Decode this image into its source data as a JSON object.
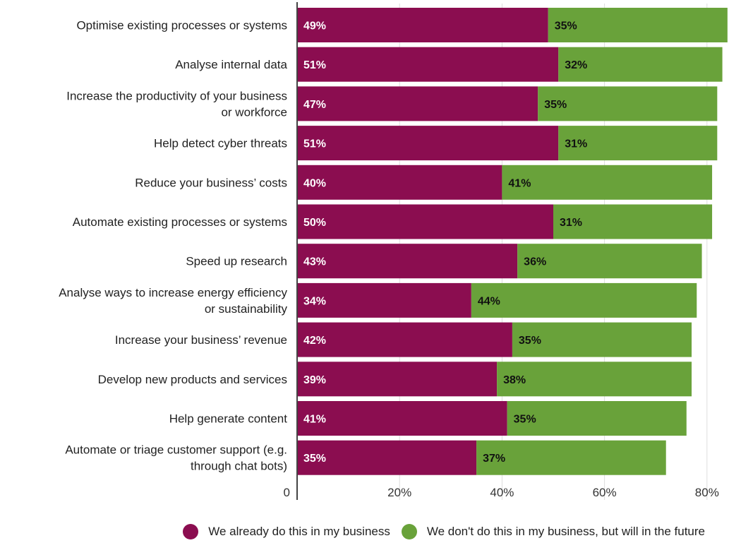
{
  "chart_data": {
    "type": "bar",
    "orientation": "horizontal",
    "stacked": true,
    "categories": [
      "Optimise existing processes or systems",
      "Analyse internal data",
      "Increase the productivity of your business or workforce",
      "Help detect cyber threats",
      "Reduce your business’ costs",
      "Automate existing processes or systems",
      "Speed up research",
      "Analyse ways to increase energy efficiency or sustainability",
      "Increase your business’ revenue",
      "Develop new products and services",
      "Help generate content",
      "Automate or triage customer support (e.g. through chat bots)"
    ],
    "category_lines": [
      [
        "Optimise existing processes or systems"
      ],
      [
        "Analyse internal data"
      ],
      [
        "Increase the productivity of your business",
        "or workforce"
      ],
      [
        "Help detect cyber threats"
      ],
      [
        "Reduce your business’ costs"
      ],
      [
        "Automate existing processes or systems"
      ],
      [
        "Speed up research"
      ],
      [
        "Analyse ways to increase energy efficiency",
        "or sustainability"
      ],
      [
        "Increase your business’ revenue"
      ],
      [
        "Develop new products and services"
      ],
      [
        "Help generate content"
      ],
      [
        "Automate or triage customer support (e.g.",
        "through chat bots)"
      ]
    ],
    "series": [
      {
        "name": "We already do this in my business",
        "color": "#8b0d50",
        "label_color": "#ffffff",
        "values": [
          49,
          51,
          47,
          51,
          40,
          50,
          43,
          34,
          42,
          39,
          41,
          35
        ],
        "labels": [
          "49%",
          "51%",
          "47%",
          "51%",
          "40%",
          "50%",
          "43%",
          "34%",
          "42%",
          "39%",
          "41%",
          "35%"
        ]
      },
      {
        "name": "We don't do this in my business, but will in the future",
        "color": "#69a23a",
        "label_color": "#111111",
        "values": [
          35,
          32,
          35,
          31,
          41,
          31,
          36,
          44,
          35,
          38,
          35,
          37
        ],
        "labels": [
          "35%",
          "32%",
          "35%",
          "31%",
          "41%",
          "31%",
          "36%",
          "44%",
          "35%",
          "38%",
          "35%",
          "37%"
        ]
      }
    ],
    "xaxis": {
      "ticks": [
        0,
        20,
        40,
        60,
        80
      ],
      "tick_labels": [
        "0",
        "20%",
        "40%",
        "60%",
        "80%"
      ]
    },
    "xlim": [
      0,
      84
    ],
    "grid": true,
    "legend_position": "bottom"
  }
}
